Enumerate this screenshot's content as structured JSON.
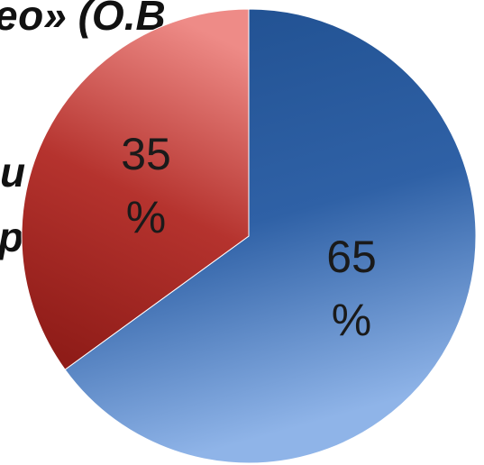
{
  "background_text": {
    "line1": "ео» (О.В",
    "line2": "и",
    "line3": "ра"
  },
  "chart_data": {
    "type": "pie",
    "title": "",
    "slices": [
      {
        "label": "65 %",
        "value_number": "65",
        "value_unit": "%",
        "value": 65,
        "color": "#2b5a9c",
        "color_light": "#8fb4e8"
      },
      {
        "label": "35 %",
        "value_number": "35",
        "value_unit": "%",
        "value": 35,
        "color": "#9e2420",
        "color_light": "#ee8b87"
      }
    ],
    "start_angle_deg": 0,
    "direction": "clockwise",
    "legend": "none"
  }
}
